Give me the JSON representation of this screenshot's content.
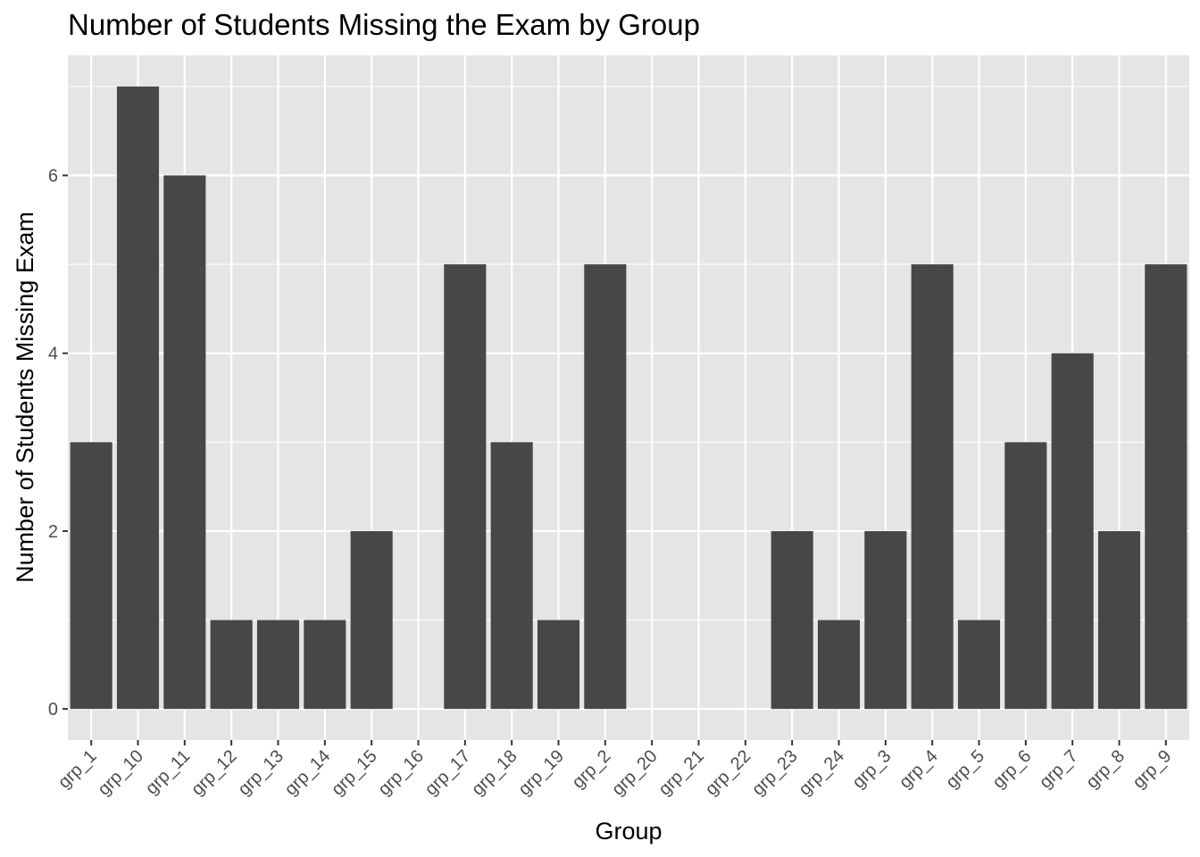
{
  "chart_data": {
    "type": "bar",
    "title": "Number of Students Missing the Exam by Group",
    "xlabel": "Group",
    "ylabel": "Number of Students Missing Exam",
    "categories": [
      "grp_1",
      "grp_10",
      "grp_11",
      "grp_12",
      "grp_13",
      "grp_14",
      "grp_15",
      "grp_16",
      "grp_17",
      "grp_18",
      "grp_19",
      "grp_2",
      "grp_20",
      "grp_21",
      "grp_22",
      "grp_23",
      "grp_24",
      "grp_3",
      "grp_4",
      "grp_5",
      "grp_6",
      "grp_7",
      "grp_8",
      "grp_9"
    ],
    "values": [
      3,
      7,
      6,
      1,
      1,
      1,
      2,
      0,
      5,
      3,
      1,
      5,
      0,
      0,
      0,
      2,
      1,
      2,
      5,
      1,
      3,
      4,
      2,
      5
    ],
    "ylim": [
      -0.35,
      7.35
    ],
    "yticks": [
      0,
      2,
      4,
      6
    ],
    "grid": true,
    "legend": "none",
    "colors": {
      "panel": "#e5e5e5",
      "grid": "#ffffff",
      "bar": "#474747",
      "tick": "#333333"
    }
  }
}
